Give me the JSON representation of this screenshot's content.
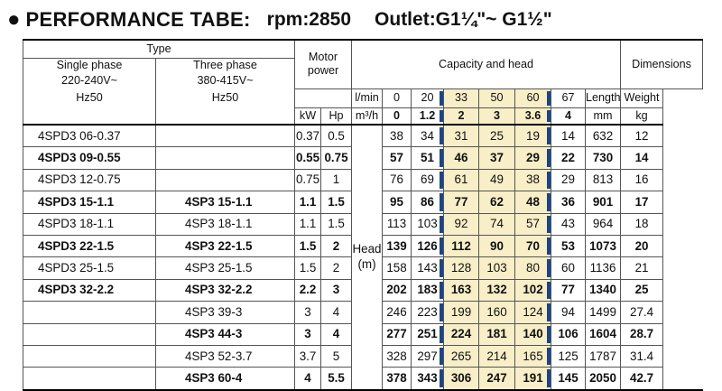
{
  "title": {
    "bullet": "●",
    "main": "PERFORMANCE TABE:",
    "rpm": "rpm:2850",
    "outlet": "Outlet:G1¼\"~ G1½\""
  },
  "header": {
    "type": "Type",
    "single_phase": "Single phase",
    "single_voltage": "220-240V~",
    "single_freq": "Hz50",
    "three_phase": "Three phase",
    "three_voltage": "380-415V~",
    "three_freq": "Hz50",
    "motor_power_1": "Motor",
    "motor_power_2": "power",
    "kw": "kW",
    "hp": "Hp",
    "capacity_and_head": "Capacity and head",
    "lmin_unit": "l/min",
    "m3h_unit": "m³/h",
    "lmin_values": [
      "0",
      "20",
      "33",
      "50",
      "60",
      "67"
    ],
    "m3h_values": [
      "0",
      "1.2",
      "2",
      "3",
      "3.6",
      "4"
    ],
    "head_label_1": "Head",
    "head_label_2": "(m)",
    "dimensions": "Dimensions",
    "length": "Length",
    "weight": "Weight",
    "mm": "mm",
    "kg": "kg"
  },
  "rows": [
    {
      "single": "4SPD3 06-0.37",
      "three": "",
      "kw": "0.37",
      "hp": "0.5",
      "head": [
        "38",
        "34",
        "31",
        "25",
        "19",
        "14"
      ],
      "length": "632",
      "weight": "12",
      "bold": false
    },
    {
      "single": "4SPD3 09-0.55",
      "three": "",
      "kw": "0.55",
      "hp": "0.75",
      "head": [
        "57",
        "51",
        "46",
        "37",
        "29",
        "22"
      ],
      "length": "730",
      "weight": "14",
      "bold": true
    },
    {
      "single": "4SPD3 12-0.75",
      "three": "",
      "kw": "0.75",
      "hp": "1",
      "head": [
        "76",
        "69",
        "61",
        "49",
        "38",
        "29"
      ],
      "length": "813",
      "weight": "16",
      "bold": false
    },
    {
      "single": "4SPD3 15-1.1",
      "three": "4SP3 15-1.1",
      "kw": "1.1",
      "hp": "1.5",
      "head": [
        "95",
        "86",
        "77",
        "62",
        "48",
        "36"
      ],
      "length": "901",
      "weight": "17",
      "bold": true
    },
    {
      "single": "4SPD3 18-1.1",
      "three": "4SP3 18-1.1",
      "kw": "1.1",
      "hp": "1.5",
      "head": [
        "113",
        "103",
        "92",
        "74",
        "57",
        "43"
      ],
      "length": "964",
      "weight": "18",
      "bold": false
    },
    {
      "single": "4SPD3 22-1.5",
      "three": "4SP3 22-1.5",
      "kw": "1.5",
      "hp": "2",
      "head": [
        "139",
        "126",
        "112",
        "90",
        "70",
        "53"
      ],
      "length": "1073",
      "weight": "20",
      "bold": true
    },
    {
      "single": "4SPD3 25-1.5",
      "three": "4SP3 25-1.5",
      "kw": "1.5",
      "hp": "2",
      "head": [
        "158",
        "143",
        "128",
        "103",
        "80",
        "60"
      ],
      "length": "1136",
      "weight": "21",
      "bold": false
    },
    {
      "single": "4SPD3 32-2.2",
      "three": "4SP3 32-2.2",
      "kw": "2.2",
      "hp": "3",
      "head": [
        "202",
        "183",
        "163",
        "132",
        "102",
        "77"
      ],
      "length": "1340",
      "weight": "25",
      "bold": true
    },
    {
      "single": "",
      "three": "4SP3 39-3",
      "kw": "3",
      "hp": "4",
      "head": [
        "246",
        "223",
        "199",
        "160",
        "124",
        "94"
      ],
      "length": "1499",
      "weight": "27.4",
      "bold": false
    },
    {
      "single": "",
      "three": "4SP3 44-3",
      "kw": "3",
      "hp": "4",
      "head": [
        "277",
        "251",
        "224",
        "181",
        "140",
        "106"
      ],
      "length": "1604",
      "weight": "28.7",
      "bold": true
    },
    {
      "single": "",
      "three": "4SP3 52-3.7",
      "kw": "3.7",
      "hp": "5",
      "head": [
        "328",
        "297",
        "265",
        "214",
        "165",
        "125"
      ],
      "length": "1787",
      "weight": "31.4",
      "bold": false
    },
    {
      "single": "",
      "three": "4SP3 60-4",
      "kw": "4",
      "hp": "5.5",
      "head": [
        "378",
        "343",
        "306",
        "247",
        "191",
        "145"
      ],
      "length": "2050",
      "weight": "42.7",
      "bold": true
    }
  ],
  "highlight_color": "#f8eec7",
  "marker_color": "#1c4587"
}
